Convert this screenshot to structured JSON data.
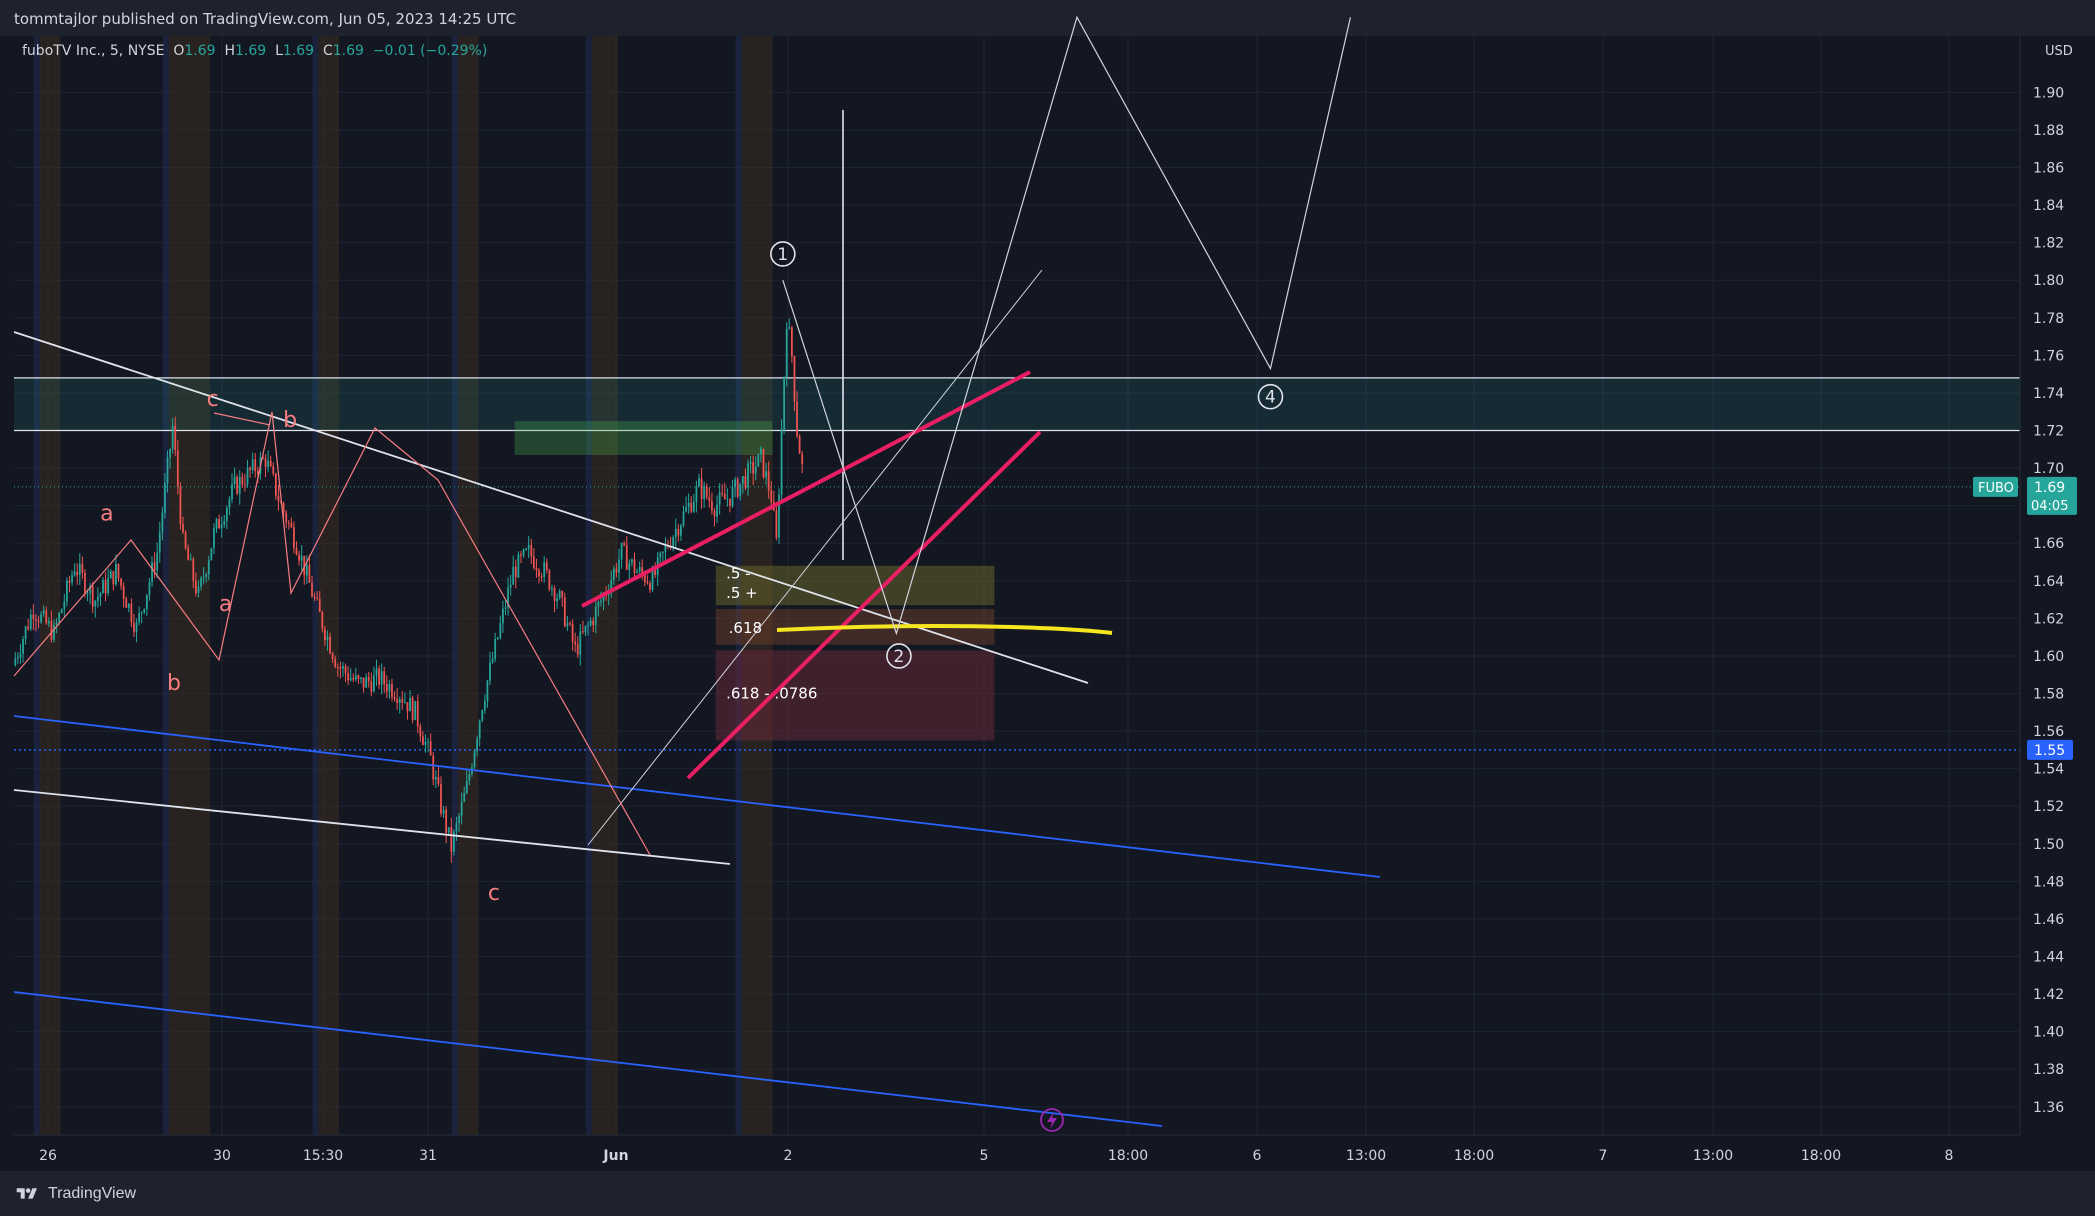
{
  "header": {
    "published": "tommtajlor published on TradingView.com, Jun 05, 2023 14:25 UTC"
  },
  "legend": {
    "symbol": "fuboTV Inc., 5, NYSE",
    "o_label": "O",
    "o": "1.69",
    "h_label": "H",
    "h": "1.69",
    "l_label": "L",
    "l": "1.69",
    "c_label": "C",
    "c": "1.69",
    "change": "−0.01 (−0.29%)"
  },
  "footer": {
    "brand": "TradingView"
  },
  "colors": {
    "background": "#131722",
    "up": "#26a69a",
    "down": "#ef5350",
    "wave_pink": "#e91e63",
    "channel_blue": "#2962ff",
    "fib_yellow": "#f5e51e",
    "abc_label": "#f77c80"
  },
  "chart_data": {
    "type": "candlestick",
    "symbol": "FUBO",
    "currency": "USD",
    "interval": "5",
    "ylim": [
      1.345,
      1.93
    ],
    "y_ticks": [
      "1.36",
      "1.38",
      "1.40",
      "1.42",
      "1.44",
      "1.46",
      "1.48",
      "1.50",
      "1.52",
      "1.54",
      "1.56",
      "1.58",
      "1.60",
      "1.62",
      "1.64",
      "1.66",
      "1.68",
      "1.70",
      "1.72",
      "1.74",
      "1.76",
      "1.78",
      "1.80",
      "1.82",
      "1.84",
      "1.86",
      "1.88",
      "1.90"
    ],
    "x_ticks": [
      "26",
      "30",
      "15:30",
      "31",
      "Jun",
      "2",
      "5",
      "18:00",
      "6",
      "13:00",
      "18:00",
      "7",
      "13:00",
      "18:00",
      "8"
    ],
    "x_tick_bold": "Jun",
    "last_price": {
      "label": "FUBO",
      "value": "1.69",
      "countdown": "04:05"
    },
    "horizontal_level": {
      "value": "1.55"
    },
    "resistance_zone": {
      "low": 1.72,
      "high": 1.748
    },
    "price_path_anchors": [
      [
        0,
        1.595
      ],
      [
        8,
        1.625
      ],
      [
        16,
        1.612
      ],
      [
        24,
        1.648
      ],
      [
        32,
        1.63
      ],
      [
        40,
        1.645
      ],
      [
        48,
        1.615
      ],
      [
        56,
        1.655
      ],
      [
        62,
        1.722
      ],
      [
        66,
        1.66
      ],
      [
        72,
        1.632
      ],
      [
        78,
        1.665
      ],
      [
        86,
        1.69
      ],
      [
        92,
        1.698
      ],
      [
        98,
        1.705
      ],
      [
        104,
        1.68
      ],
      [
        110,
        1.66
      ],
      [
        118,
        1.625
      ],
      [
        126,
        1.595
      ],
      [
        134,
        1.585
      ],
      [
        142,
        1.588
      ],
      [
        150,
        1.58
      ],
      [
        156,
        1.57
      ],
      [
        162,
        1.545
      ],
      [
        166,
        1.52
      ],
      [
        170,
        1.498
      ],
      [
        176,
        1.53
      ],
      [
        182,
        1.575
      ],
      [
        188,
        1.61
      ],
      [
        194,
        1.645
      ],
      [
        200,
        1.655
      ],
      [
        206,
        1.645
      ],
      [
        212,
        1.63
      ],
      [
        218,
        1.603
      ],
      [
        224,
        1.618
      ],
      [
        230,
        1.635
      ],
      [
        236,
        1.655
      ],
      [
        242,
        1.645
      ],
      [
        248,
        1.64
      ],
      [
        254,
        1.66
      ],
      [
        260,
        1.675
      ],
      [
        266,
        1.69
      ],
      [
        272,
        1.68
      ],
      [
        278,
        1.685
      ],
      [
        284,
        1.695
      ],
      [
        290,
        1.705
      ],
      [
        294,
        1.685
      ],
      [
        296,
        1.66
      ],
      [
        298,
        1.72
      ],
      [
        300,
        1.78
      ],
      [
        302,
        1.76
      ],
      [
        304,
        1.72
      ],
      [
        306,
        1.7
      ]
    ],
    "session_shading": [
      [
        10,
        18
      ],
      [
        60,
        76
      ],
      [
        118,
        126
      ],
      [
        172,
        180
      ],
      [
        224,
        234
      ],
      [
        282,
        294
      ]
    ],
    "wave_labels": [
      {
        "label": "a",
        "x": 36,
        "y": 1.672,
        "color": "abc"
      },
      {
        "label": "b",
        "x": 62,
        "y": 1.582,
        "color": "abc"
      },
      {
        "label": "c",
        "x": 77,
        "y": 1.733,
        "color": "abc"
      },
      {
        "label": "a",
        "x": 82,
        "y": 1.624,
        "color": "abc"
      },
      {
        "label": "b",
        "x": 107,
        "y": 1.722,
        "color": "abc"
      },
      {
        "label": "c",
        "x": 186,
        "y": 1.47,
        "color": "abc"
      }
    ],
    "elliott_labels": [
      {
        "label": "1",
        "x": 298,
        "y": 1.814
      },
      {
        "label": "2",
        "x": 343,
        "y": 1.6
      },
      {
        "label": "4",
        "x": 487,
        "y": 1.738
      }
    ],
    "fib_boxes": [
      {
        "label": ".5 -",
        "top": 1.648,
        "bottom": 1.641,
        "color": "olive"
      },
      {
        "label": ".5 +",
        "top": 1.641,
        "bottom": 1.627,
        "color": "olive"
      },
      {
        "label": ".618",
        "top": 1.625,
        "bottom": 1.606,
        "color": "brown"
      },
      {
        "label": ".618 - .0786",
        "top": 1.603,
        "bottom": 1.555,
        "color": "maroon"
      }
    ],
    "projection_path": [
      [
        298,
        1.8
      ],
      [
        342,
        1.612
      ],
      [
        412,
        1.94
      ],
      [
        487,
        1.753
      ],
      [
        518,
        1.94
      ]
    ]
  }
}
